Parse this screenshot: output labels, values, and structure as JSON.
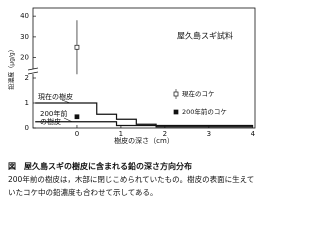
{
  "chart_data": {
    "type": "line",
    "title": "屋久島スギ試料",
    "x_label": "樹皮の深さ（cm）",
    "y_label": "鉛濃度（μg/g）",
    "xlim": [
      -1,
      4.05
    ],
    "xticks": [
      0,
      1,
      2,
      3,
      4
    ],
    "ylim_lower": [
      0,
      2.2
    ],
    "yticks_lower": [
      0,
      1,
      2
    ],
    "ylim_upper": [
      15,
      42
    ],
    "yticks_upper": [
      20,
      30,
      40
    ],
    "series": [
      {
        "name": "現在の樹皮",
        "color": "#111111",
        "x": [
          -0.95,
          0.45,
          0.45,
          0.9,
          0.9,
          1.35,
          1.35,
          1.8,
          1.8,
          4.0
        ],
        "values": [
          1.0,
          1.0,
          0.55,
          0.55,
          0.35,
          0.35,
          0.15,
          0.15,
          0.05,
          0.05
        ]
      },
      {
        "name": [
          "200年前",
          "の樹皮"
        ],
        "color": "#111111",
        "x": [
          -0.95,
          0.9,
          0.9,
          4.0
        ],
        "values": [
          0.25,
          0.25,
          0.1,
          0.1
        ]
      }
    ],
    "points": [
      {
        "name": "現在のコケ",
        "x": 0,
        "values": [
          25
        ],
        "error": [
          13
        ],
        "filled": false
      },
      {
        "name": "200年前のコケ",
        "x": 0,
        "values": [
          0.45
        ],
        "filled": true
      }
    ],
    "caption": {
      "heading": "図　屋久島スギの樹皮に含まれる鉛の深さ方向分布",
      "text": "200年前の樹皮は，木部に閉じこめられていたもの。樹皮の表面に生えていたコケ中の鉛濃度も合わせて示してある。"
    }
  }
}
